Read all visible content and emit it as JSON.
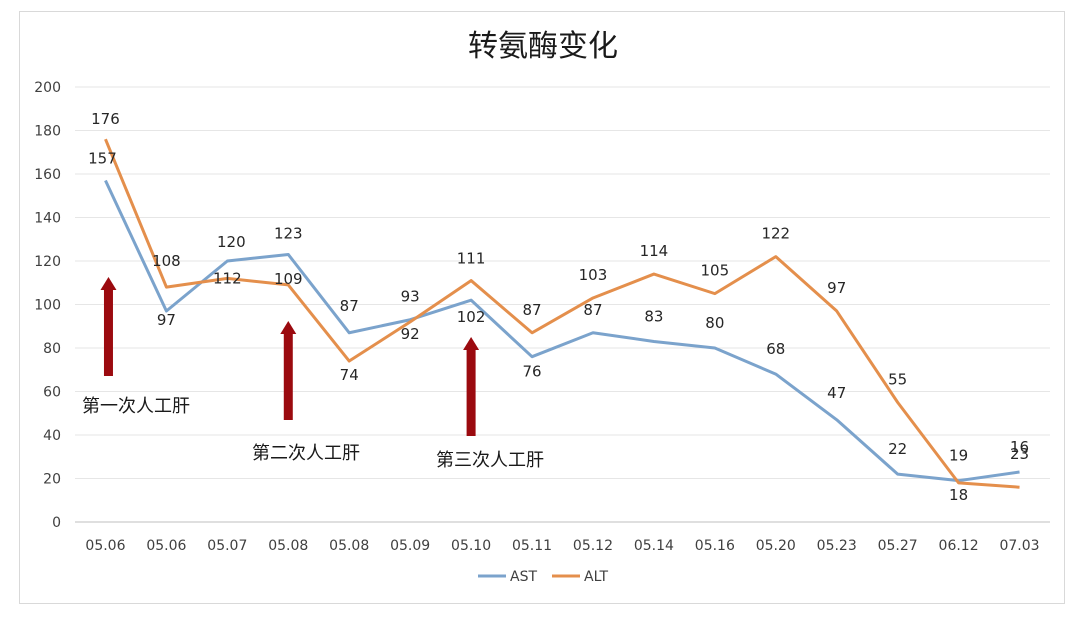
{
  "chart_data": {
    "type": "line",
    "title": "转氨酶变化",
    "xlabel": "",
    "ylabel": "",
    "ylim": [
      0,
      200
    ],
    "yticks": [
      0,
      20,
      40,
      60,
      80,
      100,
      120,
      140,
      160,
      180,
      200
    ],
    "grid": true,
    "legend_position": "bottom",
    "categories": [
      "05.06",
      "05.06",
      "05.07",
      "05.08",
      "05.08",
      "05.09",
      "05.10",
      "05.11",
      "05.12",
      "05.14",
      "05.16",
      "05.20",
      "05.23",
      "05.27",
      "06.12",
      "07.03"
    ],
    "series": [
      {
        "name": "AST",
        "color": "#7ba3cc",
        "values": [
          157,
          97,
          120,
          123,
          87,
          93,
          102,
          76,
          87,
          83,
          80,
          68,
          47,
          22,
          19,
          23
        ]
      },
      {
        "name": "ALT",
        "color": "#e48f4c",
        "values": [
          176,
          108,
          112,
          109,
          74,
          92,
          111,
          87,
          103,
          114,
          105,
          122,
          97,
          55,
          18,
          16
        ]
      }
    ],
    "annotations": [
      {
        "text": "第一次人工肝",
        "category_index": 0
      },
      {
        "text": "第二次人工肝",
        "category_index": 3
      },
      {
        "text": "第三次人工肝",
        "category_index": 6
      }
    ],
    "annotation_arrow_color": "#9b0a0f"
  }
}
